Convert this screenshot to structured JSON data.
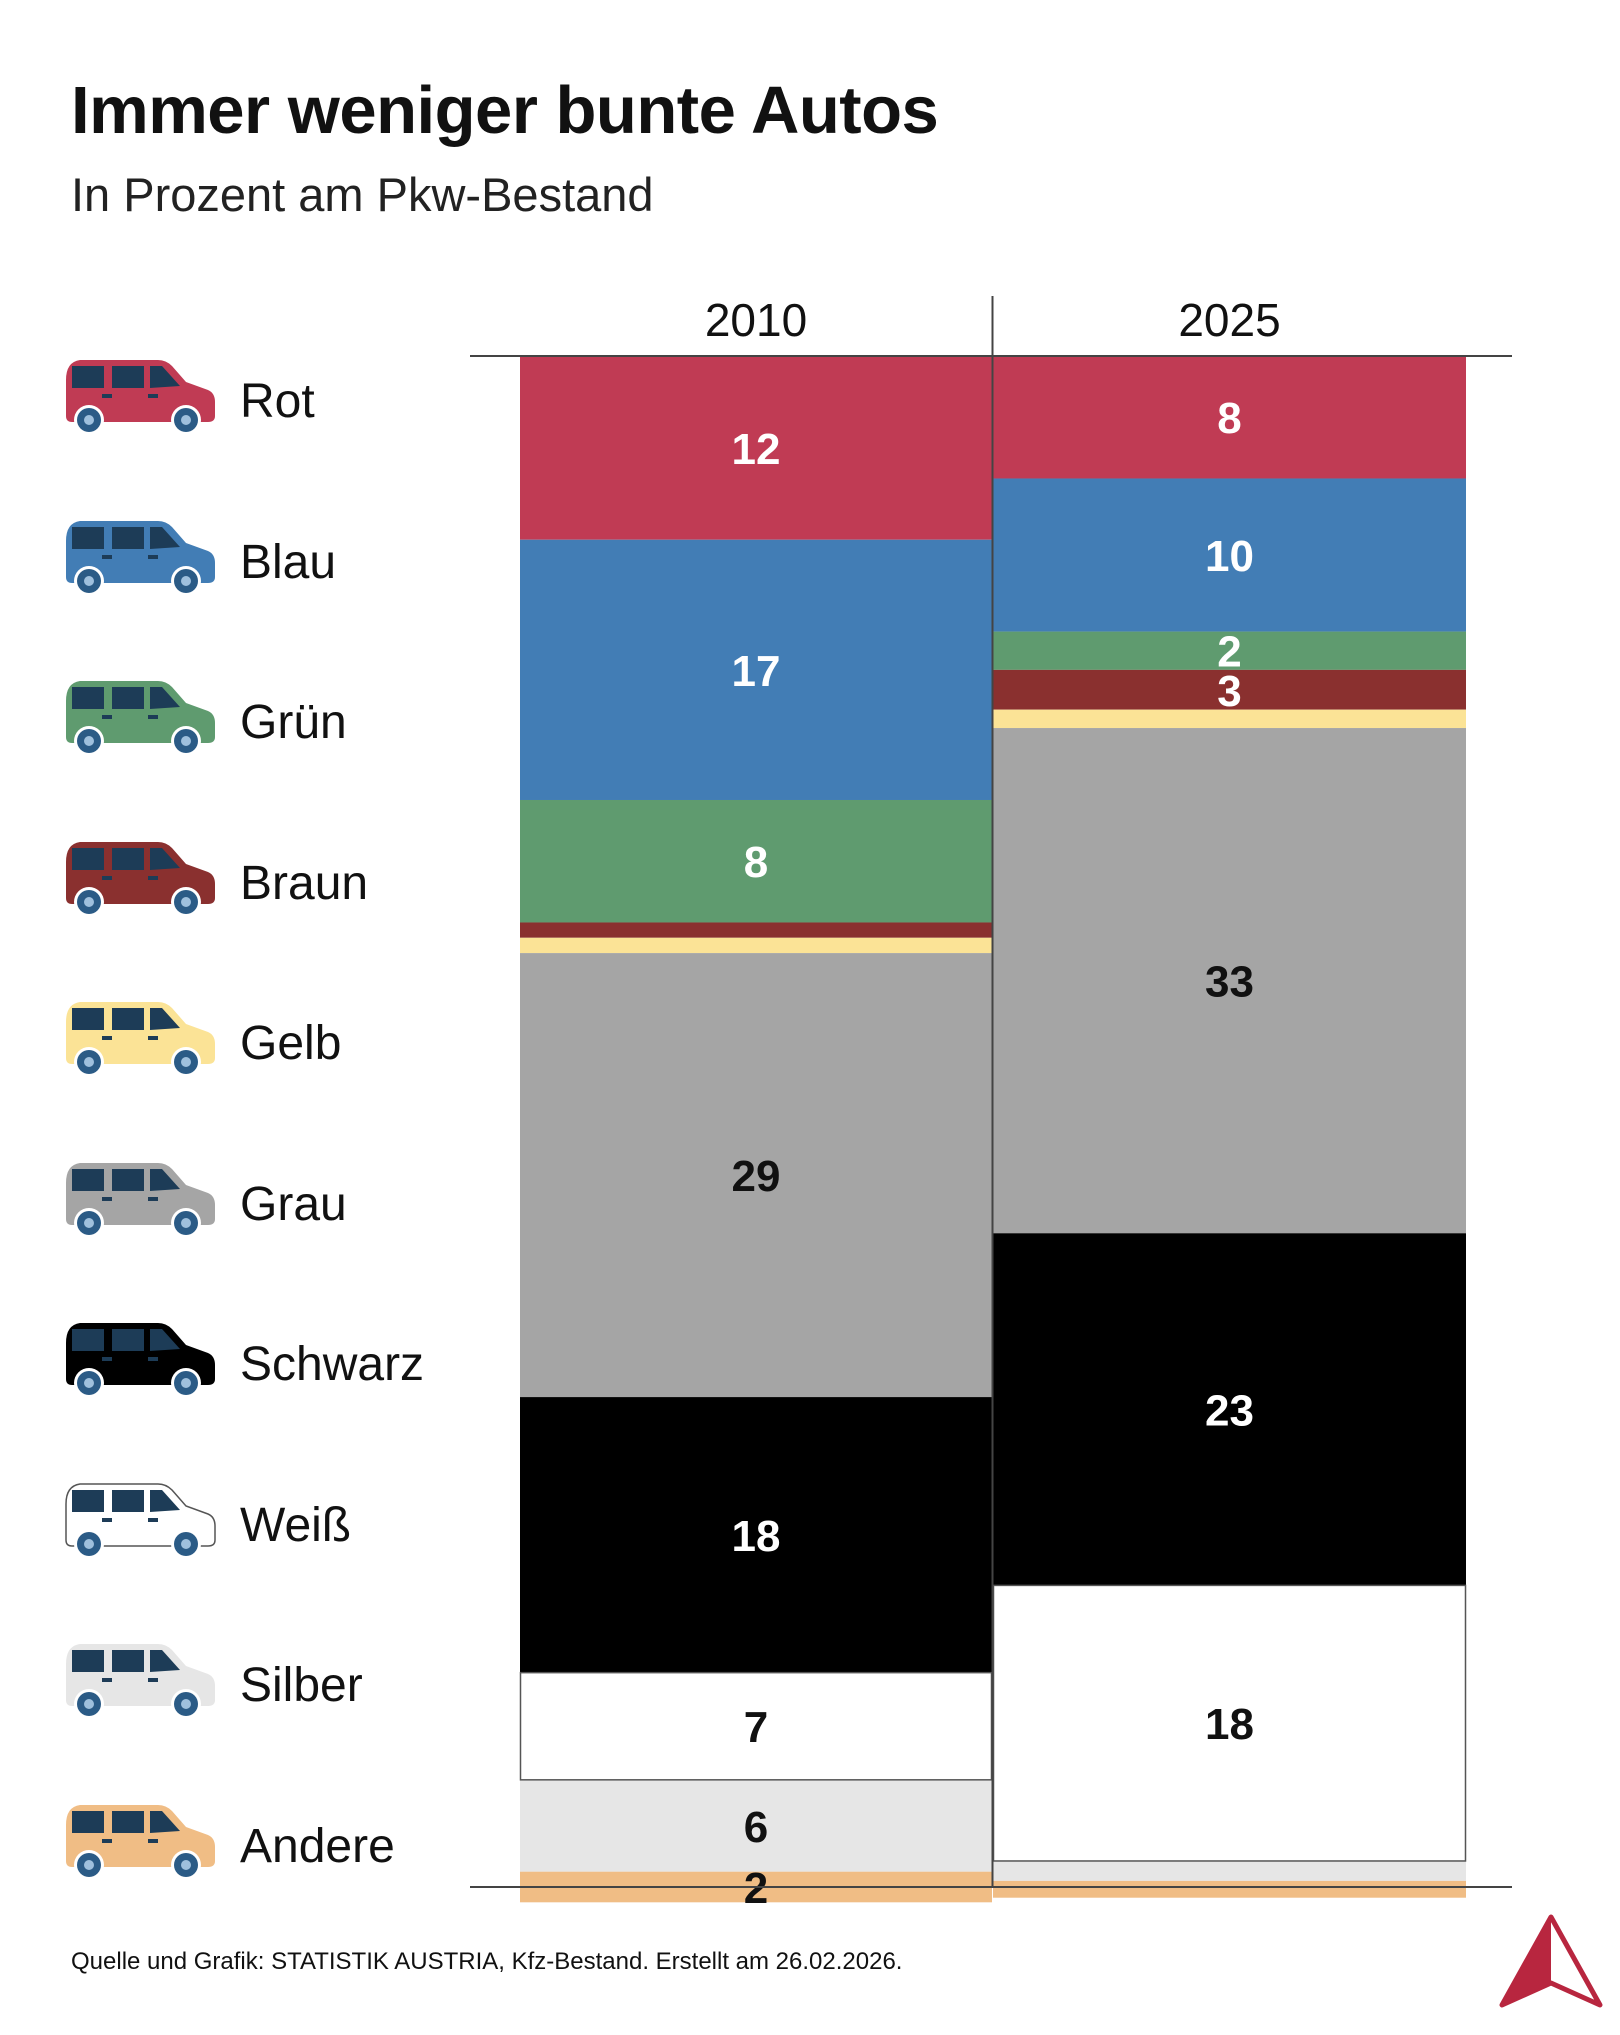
{
  "title": "Immer weniger bunte Autos",
  "subtitle": "In Prozent am Pkw-Bestand",
  "source": "Quelle und Grafik: STATISTIK AUSTRIA, Kfz-Bestand. Erstellt am 26.02.2026.",
  "colors": {
    "Rot": "#c03b54",
    "Blau": "#427db5",
    "Grün": "#5f9b6f",
    "Braun": "#8a302f",
    "Gelb": "#fbe396",
    "Grau": "#a5a5a5",
    "Schwarz": "#000000",
    "Weiß": "#ffffff",
    "Silber": "#e6e6e6",
    "Andere": "#f0bd85",
    "car_window": "#1d3c57",
    "wheel": "#2b5b86",
    "logo": "#b8263f"
  },
  "chart_data": {
    "type": "bar",
    "stacked": true,
    "normalized_to": 100,
    "categories": [
      "2010",
      "2025"
    ],
    "series": [
      {
        "name": "Rot",
        "values": [
          12,
          8
        ],
        "labels": [
          "12",
          "8"
        ]
      },
      {
        "name": "Blau",
        "values": [
          17,
          10
        ],
        "labels": [
          "17",
          "10"
        ]
      },
      {
        "name": "Grün",
        "values": [
          8,
          2.5
        ],
        "labels": [
          "8",
          "2"
        ]
      },
      {
        "name": "Braun",
        "values": [
          1,
          2.6
        ],
        "labels": [
          "",
          "3"
        ]
      },
      {
        "name": "Gelb",
        "values": [
          1,
          1.2
        ],
        "labels": [
          "",
          ""
        ]
      },
      {
        "name": "Grau",
        "values": [
          29,
          33
        ],
        "labels": [
          "29",
          "33"
        ]
      },
      {
        "name": "Schwarz",
        "values": [
          18,
          23
        ],
        "labels": [
          "18",
          "23"
        ]
      },
      {
        "name": "Weiß",
        "values": [
          7,
          18
        ],
        "labels": [
          "7",
          "18"
        ]
      },
      {
        "name": "Silber",
        "values": [
          6,
          1.3
        ],
        "labels": [
          "6",
          ""
        ]
      },
      {
        "name": "Andere",
        "values": [
          2,
          1.1
        ],
        "labels": [
          "2",
          ""
        ]
      }
    ],
    "ylim": [
      0,
      100
    ],
    "grid": false,
    "legend": "left",
    "title": "Immer weniger bunte Autos",
    "subtitle": "In Prozent am Pkw-Bestand",
    "xlabel": "",
    "ylabel": ""
  }
}
